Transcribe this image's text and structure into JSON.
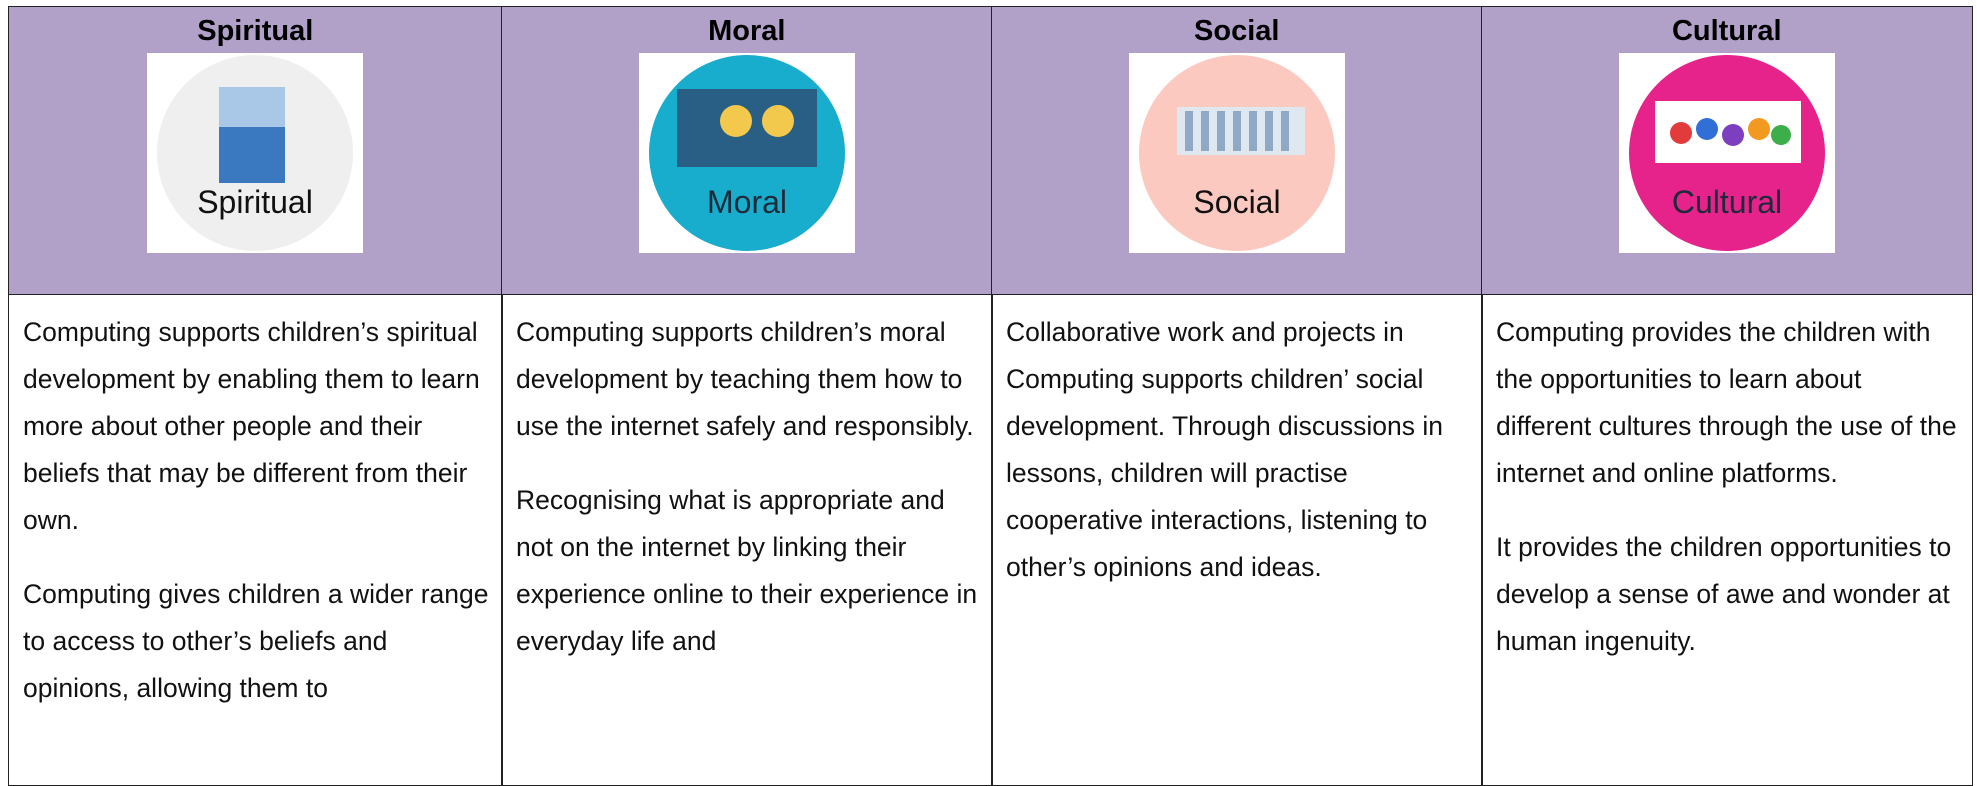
{
  "columns": [
    {
      "title": "Spiritual",
      "icon_caption": "Spiritual",
      "paragraphs": [
        "Computing supports children’s spiritual development by enabling them to learn more about other people and their beliefs that may be different from their own.",
        "Computing gives children a wider range to access to other’s beliefs and opinions, allowing them to"
      ]
    },
    {
      "title": "Moral",
      "icon_caption": "Moral",
      "paragraphs": [
        "Computing supports children’s moral development by teaching them how to use the internet safely and responsibly.",
        "Recognising what is appropriate and not on the internet by linking their experience online to their experience in everyday life and"
      ]
    },
    {
      "title": "Social",
      "icon_caption": "Social",
      "paragraphs": [
        "Collaborative work and projects in Computing supports children’ social development. Through discussions in lessons, children will practise cooperative interactions, listening to other’s opinions and ideas."
      ]
    },
    {
      "title": "Cultural",
      "icon_caption": "Cultural",
      "paragraphs": [
        "Computing provides the children with the opportunities to learn about different cultures through the use of the internet and online platforms.",
        "It provides the children opportunities to develop a sense of awe and wonder at human ingenuity."
      ]
    }
  ]
}
